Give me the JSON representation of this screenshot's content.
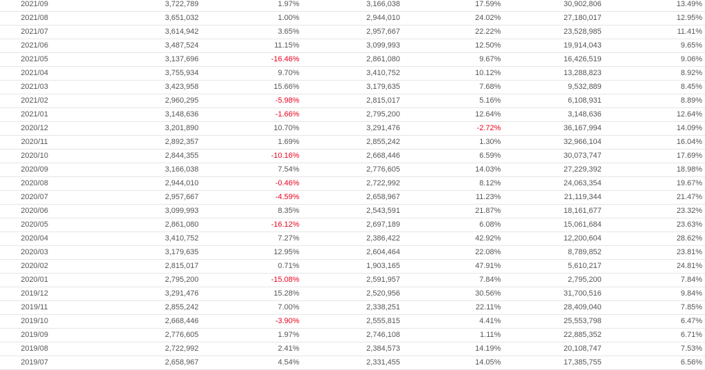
{
  "colors": {
    "negative": "#e8001c",
    "text": "#555555",
    "row_border": "#e6e6e6"
  },
  "rows": [
    [
      "2021/09",
      "3,722,789",
      "1.97%",
      "3,166,038",
      "17.59%",
      "30,902,806",
      "13.49%"
    ],
    [
      "2021/08",
      "3,651,032",
      "1.00%",
      "2,944,010",
      "24.02%",
      "27,180,017",
      "12.95%"
    ],
    [
      "2021/07",
      "3,614,942",
      "3.65%",
      "2,957,667",
      "22.22%",
      "23,528,985",
      "11.41%"
    ],
    [
      "2021/06",
      "3,487,524",
      "11.15%",
      "3,099,993",
      "12.50%",
      "19,914,043",
      "9.65%"
    ],
    [
      "2021/05",
      "3,137,696",
      "-16.46%",
      "2,861,080",
      "9.67%",
      "16,426,519",
      "9.06%"
    ],
    [
      "2021/04",
      "3,755,934",
      "9.70%",
      "3,410,752",
      "10.12%",
      "13,288,823",
      "8.92%"
    ],
    [
      "2021/03",
      "3,423,958",
      "15.66%",
      "3,179,635",
      "7.68%",
      "9,532,889",
      "8.45%"
    ],
    [
      "2021/02",
      "2,960,295",
      "-5.98%",
      "2,815,017",
      "5.16%",
      "6,108,931",
      "8.89%"
    ],
    [
      "2021/01",
      "3,148,636",
      "-1.66%",
      "2,795,200",
      "12.64%",
      "3,148,636",
      "12.64%"
    ],
    [
      "2020/12",
      "3,201,890",
      "10.70%",
      "3,291,476",
      "-2.72%",
      "36,167,994",
      "14.09%"
    ],
    [
      "2020/11",
      "2,892,357",
      "1.69%",
      "2,855,242",
      "1.30%",
      "32,966,104",
      "16.04%"
    ],
    [
      "2020/10",
      "2,844,355",
      "-10.16%",
      "2,668,446",
      "6.59%",
      "30,073,747",
      "17.69%"
    ],
    [
      "2020/09",
      "3,166,038",
      "7.54%",
      "2,776,605",
      "14.03%",
      "27,229,392",
      "18.98%"
    ],
    [
      "2020/08",
      "2,944,010",
      "-0.46%",
      "2,722,992",
      "8.12%",
      "24,063,354",
      "19.67%"
    ],
    [
      "2020/07",
      "2,957,667",
      "-4.59%",
      "2,658,967",
      "11.23%",
      "21,119,344",
      "21.47%"
    ],
    [
      "2020/06",
      "3,099,993",
      "8.35%",
      "2,543,591",
      "21.87%",
      "18,161,677",
      "23.32%"
    ],
    [
      "2020/05",
      "2,861,080",
      "-16.12%",
      "2,697,189",
      "6.08%",
      "15,061,684",
      "23.63%"
    ],
    [
      "2020/04",
      "3,410,752",
      "7.27%",
      "2,386,422",
      "42.92%",
      "12,200,604",
      "28.62%"
    ],
    [
      "2020/03",
      "3,179,635",
      "12.95%",
      "2,604,464",
      "22.08%",
      "8,789,852",
      "23.81%"
    ],
    [
      "2020/02",
      "2,815,017",
      "0.71%",
      "1,903,165",
      "47.91%",
      "5,610,217",
      "24.81%"
    ],
    [
      "2020/01",
      "2,795,200",
      "-15.08%",
      "2,591,957",
      "7.84%",
      "2,795,200",
      "7.84%"
    ],
    [
      "2019/12",
      "3,291,476",
      "15.28%",
      "2,520,956",
      "30.56%",
      "31,700,516",
      "9.84%"
    ],
    [
      "2019/11",
      "2,855,242",
      "7.00%",
      "2,338,251",
      "22.11%",
      "28,409,040",
      "7.85%"
    ],
    [
      "2019/10",
      "2,668,446",
      "-3.90%",
      "2,555,815",
      "4.41%",
      "25,553,798",
      "6.47%"
    ],
    [
      "2019/09",
      "2,776,605",
      "1.97%",
      "2,746,108",
      "1.11%",
      "22,885,352",
      "6.71%"
    ],
    [
      "2019/08",
      "2,722,992",
      "2.41%",
      "2,384,573",
      "14.19%",
      "20,108,747",
      "7.53%"
    ],
    [
      "2019/07",
      "2,658,967",
      "4.54%",
      "2,331,455",
      "14.05%",
      "17,385,755",
      "6.56%"
    ]
  ]
}
